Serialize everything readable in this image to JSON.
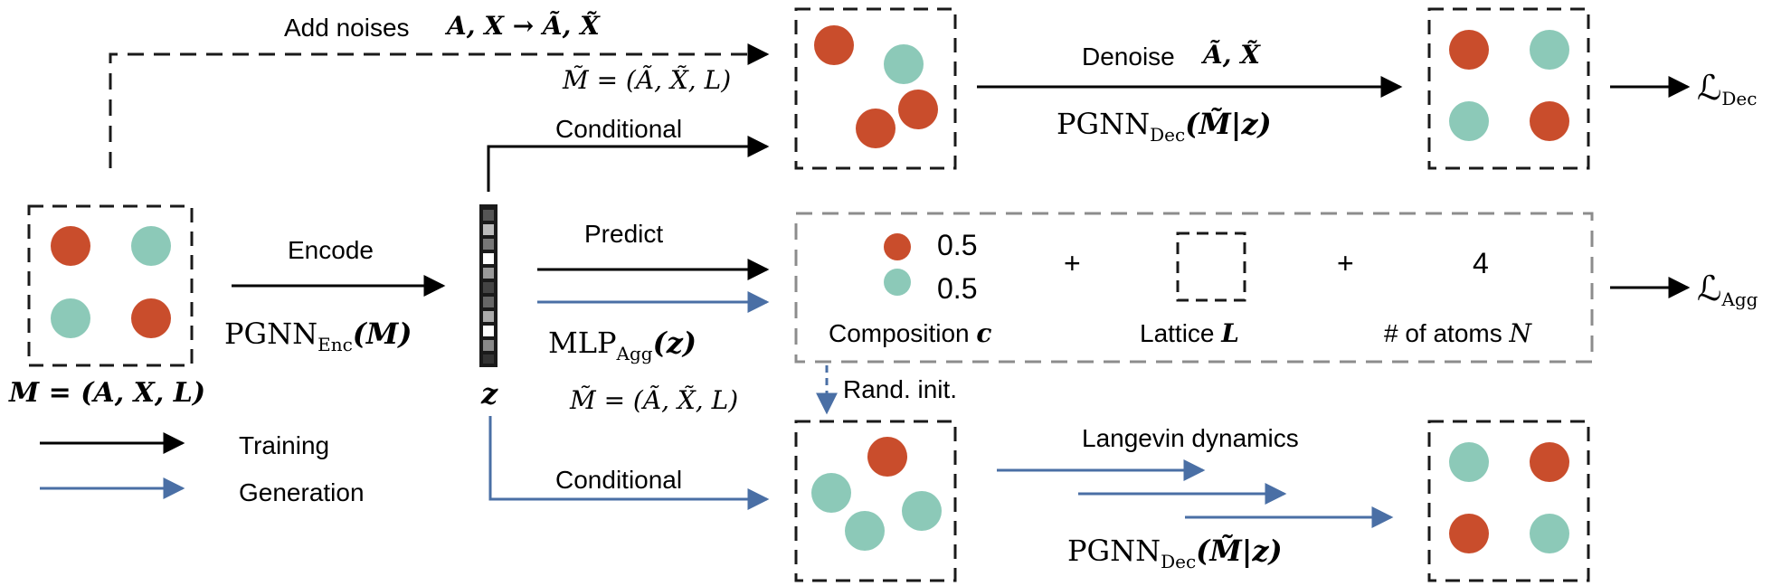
{
  "colors": {
    "atom_a": "#c94d2c",
    "atom_b": "#8cc9b8",
    "training_arrow": "#000000",
    "generation_arrow": "#4a6fa5",
    "dashed_box": "#1a1a1a",
    "aggregate_box": "#8c8c8c"
  },
  "labels": {
    "add_noises": "Add noises",
    "add_noises_math": "A, X → Ã, X̃",
    "noisy_material_top": "M̃ = (Ã, X̃, L)",
    "noisy_material_mid": "M̃ = (Ã, X̃, L)",
    "denoise": "Denoise",
    "denoise_math": "Ã, X̃",
    "pgnn_dec_top": "PGNN",
    "pgnn_dec_top_sub": "Dec",
    "pgnn_dec_top_arg": "(M̃|z)",
    "pgnn_dec_bottom": "PGNN",
    "pgnn_dec_bottom_sub": "Dec",
    "pgnn_dec_bottom_arg": "(M̃|z)",
    "loss_dec": "ℒ",
    "loss_dec_sub": "Dec",
    "loss_agg": "ℒ",
    "loss_agg_sub": "Agg",
    "conditional_top": "Conditional",
    "conditional_bottom": "Conditional",
    "encode": "Encode",
    "pgnn_enc": "PGNN",
    "pgnn_enc_sub": "Enc",
    "pgnn_enc_arg": "(M)",
    "material": "M = (A, X, L)",
    "latent": "z",
    "predict": "Predict",
    "mlp_agg": "MLP",
    "mlp_agg_sub": "Agg",
    "mlp_agg_arg": "(z)",
    "composition_value_1": "0.5",
    "composition_value_2": "0.5",
    "plus_1": "+",
    "plus_2": "+",
    "num_atoms_value": "4",
    "composition_label": "Composition",
    "composition_symbol": "c",
    "lattice_label": "Lattice",
    "lattice_symbol": "L",
    "num_atoms_label": "# of atoms",
    "num_atoms_symbol": "N",
    "rand_init": "Rand. init.",
    "langevin": "Langevin dynamics",
    "legend_training": "Training",
    "legend_generation": "Generation"
  }
}
